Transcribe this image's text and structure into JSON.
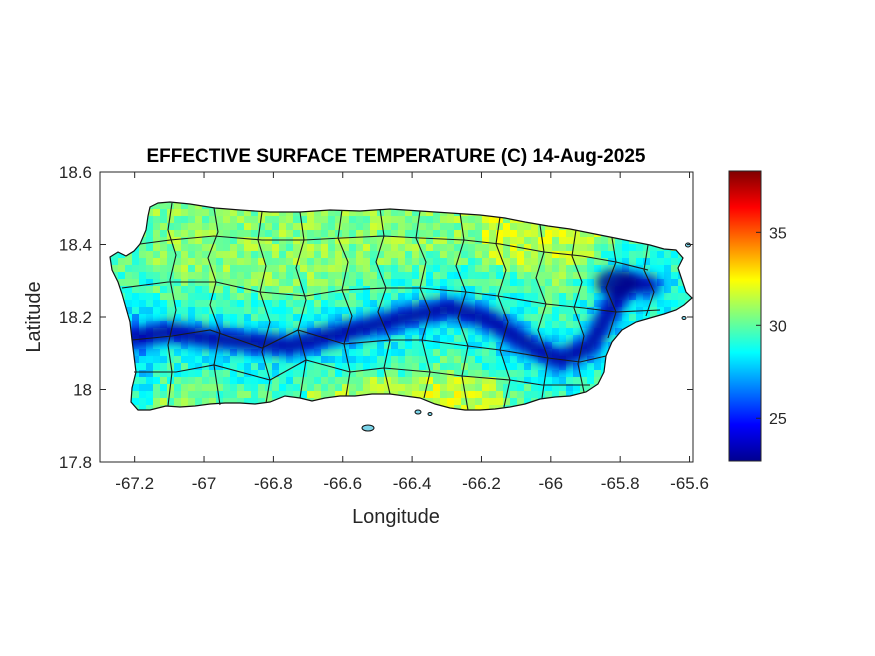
{
  "title": "EFFECTIVE SURFACE TEMPERATURE (C) 14-Aug-2025",
  "xlabel": "Longitude",
  "ylabel": "Latitude",
  "chart_data": {
    "type": "heatmap",
    "title": "EFFECTIVE SURFACE TEMPERATURE (C) 14-Aug-2025",
    "xlabel": "Longitude",
    "ylabel": "Latitude",
    "xlim": [
      -67.3,
      -65.59
    ],
    "ylim": [
      17.8,
      18.6
    ],
    "xticks": [
      -67.2,
      -67,
      -66.8,
      -66.6,
      -66.4,
      -66.2,
      -66,
      -65.8,
      -65.6
    ],
    "xtick_labels": [
      "-67.2",
      "-67",
      "-66.8",
      "-66.6",
      "-66.4",
      "-66.2",
      "-66",
      "-65.8",
      "-65.6"
    ],
    "yticks": [
      17.8,
      18,
      18.2,
      18.4,
      18.6
    ],
    "ytick_labels": [
      "17.8",
      "18",
      "18.2",
      "18.4",
      "18.6"
    ],
    "colorbar": {
      "colormap": "jet",
      "clim": [
        22.7,
        38.3
      ],
      "ticks": [
        25,
        30,
        35
      ],
      "tick_labels": [
        "25",
        "30",
        "35"
      ]
    },
    "grid": false
  },
  "colors": {
    "axis": "#262626",
    "border": "#000000",
    "background": "#ffffff"
  }
}
